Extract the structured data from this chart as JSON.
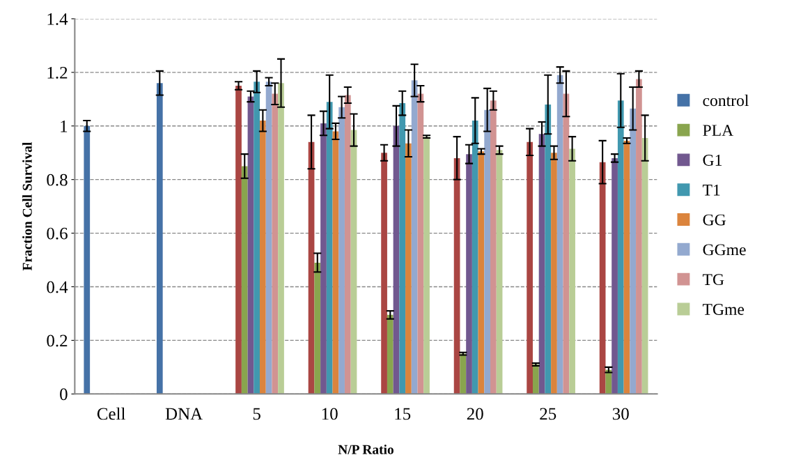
{
  "chart_data": {
    "type": "bar",
    "xlabel": "N/P Ratio",
    "ylabel": "Fraction Cell Survival",
    "categories": [
      "Cell",
      "DNA",
      "5",
      "10",
      "15",
      "20",
      "25",
      "30"
    ],
    "ylim": [
      0,
      1.4
    ],
    "yticks": [
      0,
      0.2,
      0.4,
      0.6,
      0.8,
      1,
      1.2,
      1.4
    ],
    "grid": "y",
    "legend": "right",
    "series": [
      {
        "name": "control",
        "color": "#4572a7",
        "values": [
          1.0,
          1.16,
          null,
          null,
          null,
          null,
          null,
          null
        ],
        "errors": [
          0.02,
          0.045,
          null,
          null,
          null,
          null,
          null,
          null
        ]
      },
      {
        "color": "#aa4643",
        "values": [
          null,
          null,
          1.15,
          0.94,
          0.9,
          0.88,
          0.94,
          0.865
        ],
        "errors": [
          null,
          null,
          0.015,
          0.1,
          0.03,
          0.08,
          0.05,
          0.08
        ]
      },
      {
        "name": "PLA",
        "color": "#89a54e",
        "values": [
          null,
          null,
          0.85,
          0.49,
          0.295,
          0.15,
          0.11,
          0.09
        ],
        "errors": [
          null,
          null,
          0.045,
          0.035,
          0.015,
          0.005,
          0.005,
          0.01
        ]
      },
      {
        "name": "G1",
        "color": "#71588f",
        "values": [
          null,
          null,
          1.11,
          1.01,
          1.0,
          0.895,
          0.97,
          0.88
        ],
        "errors": [
          null,
          null,
          0.02,
          0.045,
          0.075,
          0.035,
          0.045,
          0.015
        ]
      },
      {
        "name": "T1",
        "color": "#4198af",
        "values": [
          null,
          null,
          1.165,
          1.09,
          1.085,
          1.02,
          1.08,
          1.095
        ],
        "errors": [
          null,
          null,
          0.04,
          0.1,
          0.045,
          0.085,
          0.11,
          0.1
        ]
      },
      {
        "name": "GG",
        "color": "#db843d",
        "values": [
          null,
          null,
          1.02,
          0.98,
          0.935,
          0.905,
          0.9,
          0.945
        ],
        "errors": [
          null,
          null,
          0.04,
          0.03,
          0.05,
          0.01,
          0.025,
          0.01
        ]
      },
      {
        "name": "GGme",
        "color": "#93a9cf",
        "values": [
          null,
          null,
          1.165,
          1.07,
          1.17,
          1.06,
          1.19,
          1.065
        ],
        "errors": [
          null,
          null,
          0.015,
          0.04,
          0.06,
          0.08,
          0.03,
          0.08
        ]
      },
      {
        "name": "TG",
        "color": "#d19392",
        "values": [
          null,
          null,
          1.12,
          1.115,
          1.12,
          1.095,
          1.12,
          1.175
        ],
        "errors": [
          null,
          null,
          0.04,
          0.03,
          0.03,
          0.035,
          0.085,
          0.03
        ]
      },
      {
        "name": "TGme",
        "color": "#b9cd96",
        "values": [
          null,
          null,
          1.16,
          0.985,
          0.96,
          0.91,
          0.915,
          0.955
        ],
        "errors": [
          null,
          null,
          0.09,
          0.06,
          0.005,
          0.015,
          0.045,
          0.085
        ]
      }
    ]
  }
}
